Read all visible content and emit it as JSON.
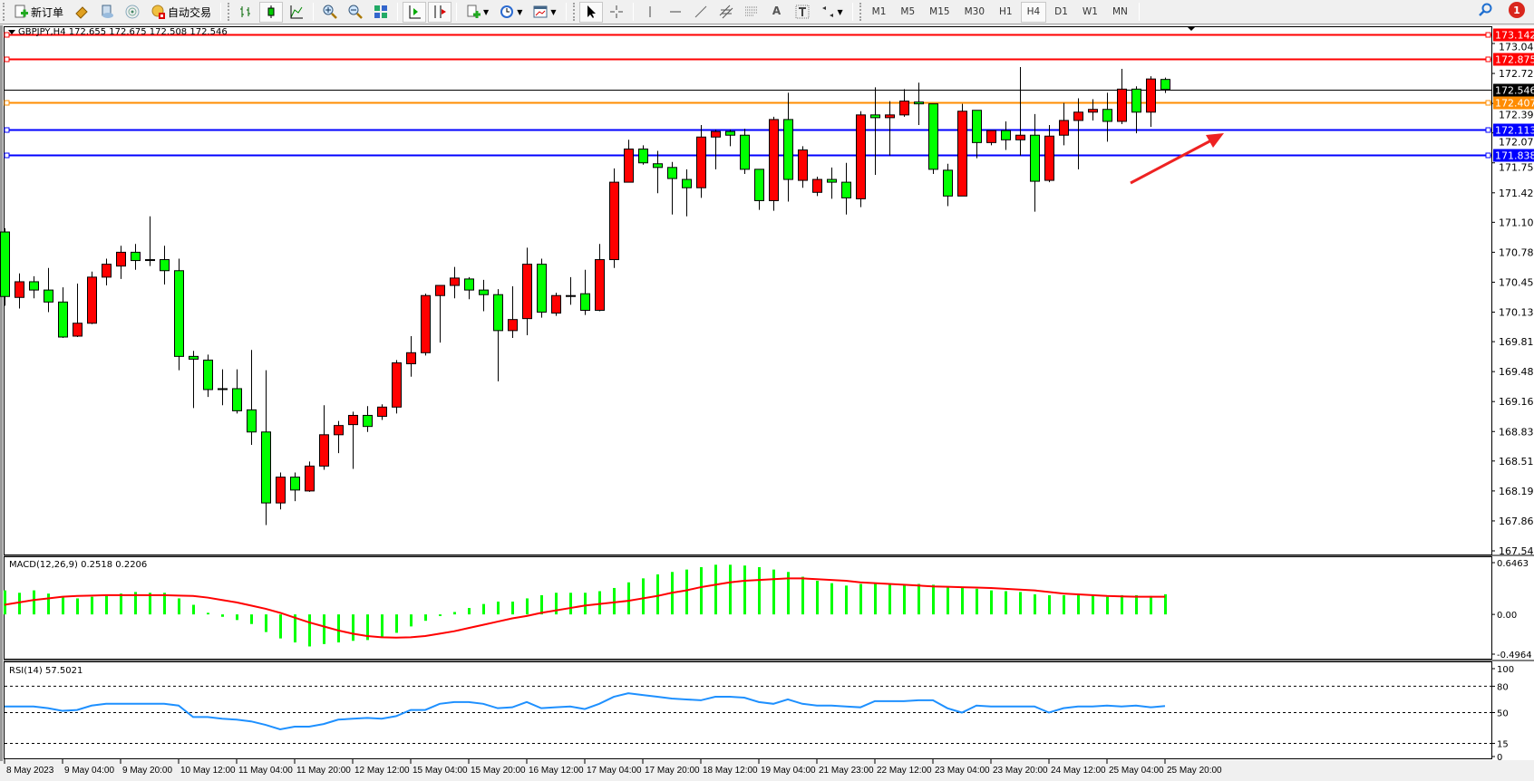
{
  "toolbar": {
    "new_order_label": "新订单",
    "auto_trading_label": "自动交易",
    "timeframes": [
      "M1",
      "M5",
      "M15",
      "M30",
      "H1",
      "H4",
      "D1",
      "W1",
      "MN"
    ],
    "active_timeframe": "H4",
    "notification_count": "1"
  },
  "chart": {
    "title": "GBPJPY,H4  172.655 172.675 172.508 172.546",
    "bull_color": "#ff0000",
    "bear_color": "#00ff00",
    "price_ticks": [
      "173.045",
      "172.720",
      "172.395",
      "172.075",
      "171.750",
      "171.425",
      "171.105",
      "170.780",
      "170.455",
      "170.130",
      "169.810",
      "169.485",
      "169.160",
      "168.835",
      "168.515",
      "168.190",
      "167.865",
      "167.540"
    ],
    "levels": [
      {
        "price": 173.142,
        "label": "173.142",
        "color": "#ff0000"
      },
      {
        "price": 172.875,
        "label": "172.875",
        "color": "#ff0000"
      },
      {
        "price": 172.407,
        "label": "172.407",
        "color": "#ff8c00"
      },
      {
        "price": 172.113,
        "label": "172.113",
        "color": "#0000ff"
      },
      {
        "price": 171.838,
        "label": "171.838",
        "color": "#0000ff"
      }
    ],
    "bid": {
      "price": 172.546,
      "label": "172.546",
      "color": "#000000"
    },
    "annotation_arrow_color": "#ee2222",
    "time_labels": [
      "8 May 2023",
      "9 May 04:00",
      "9 May 20:00",
      "10 May 12:00",
      "11 May 04:00",
      "11 May 20:00",
      "12 May 12:00",
      "15 May 04:00",
      "15 May 20:00",
      "16 May 12:00",
      "17 May 04:00",
      "17 May 20:00",
      "18 May 12:00",
      "19 May 04:00",
      "21 May 23:00",
      "22 May 12:00",
      "23 May 04:00",
      "23 May 20:00",
      "24 May 12:00",
      "25 May 04:00",
      "25 May 20:00"
    ]
  },
  "macd": {
    "label": "MACD(12,26,9) 0.2518 0.2206",
    "ticks": [
      "0.6463",
      "0.00",
      "-0.4964"
    ]
  },
  "rsi": {
    "label": "RSI(14) 57.5021",
    "ticks": [
      "100",
      "80",
      "50",
      "15",
      "0"
    ],
    "levels": [
      80,
      50,
      15
    ]
  },
  "chart_data": {
    "type": "candlestick",
    "ylim": [
      167.54,
      173.045
    ],
    "ohlc": [
      [
        171.0,
        171.04,
        170.2,
        170.3
      ],
      [
        170.29,
        170.55,
        170.17,
        170.46
      ],
      [
        170.46,
        170.52,
        170.28,
        170.37
      ],
      [
        170.37,
        170.61,
        170.13,
        170.24
      ],
      [
        170.24,
        170.4,
        169.85,
        169.86
      ],
      [
        169.87,
        170.44,
        169.86,
        170.01
      ],
      [
        170.01,
        170.57,
        170.0,
        170.51
      ],
      [
        170.51,
        170.71,
        170.42,
        170.65
      ],
      [
        170.63,
        170.85,
        170.49,
        170.78
      ],
      [
        170.78,
        170.87,
        170.59,
        170.69
      ],
      [
        170.7,
        171.17,
        170.63,
        170.7
      ],
      [
        170.7,
        170.85,
        170.43,
        170.58
      ],
      [
        170.58,
        170.71,
        169.5,
        169.65
      ],
      [
        169.65,
        169.71,
        169.09,
        169.62
      ],
      [
        169.61,
        169.67,
        169.21,
        169.29
      ],
      [
        169.3,
        169.51,
        169.12,
        169.29
      ],
      [
        169.3,
        169.51,
        169.03,
        169.06
      ],
      [
        169.07,
        169.72,
        168.69,
        168.83
      ],
      [
        168.83,
        169.5,
        167.82,
        168.06
      ],
      [
        168.06,
        168.39,
        167.99,
        168.34
      ],
      [
        168.34,
        168.39,
        168.08,
        168.2
      ],
      [
        168.19,
        168.51,
        168.18,
        168.46
      ],
      [
        168.46,
        169.12,
        168.42,
        168.8
      ],
      [
        168.8,
        168.95,
        168.6,
        168.9
      ],
      [
        168.91,
        169.05,
        168.43,
        169.01
      ],
      [
        169.01,
        169.11,
        168.83,
        168.89
      ],
      [
        169.0,
        169.13,
        168.96,
        169.1
      ],
      [
        169.1,
        169.61,
        169.03,
        169.58
      ],
      [
        169.57,
        169.87,
        169.43,
        169.69
      ],
      [
        169.69,
        170.33,
        169.66,
        170.31
      ],
      [
        170.31,
        170.42,
        169.8,
        170.42
      ],
      [
        170.42,
        170.62,
        170.28,
        170.5
      ],
      [
        170.49,
        170.51,
        170.27,
        170.37
      ],
      [
        170.37,
        170.48,
        170.14,
        170.32
      ],
      [
        170.32,
        170.38,
        169.38,
        169.93
      ],
      [
        169.93,
        170.41,
        169.85,
        170.05
      ],
      [
        170.06,
        170.83,
        169.88,
        170.65
      ],
      [
        170.65,
        170.71,
        170.07,
        170.13
      ],
      [
        170.12,
        170.34,
        170.09,
        170.31
      ],
      [
        170.31,
        170.51,
        170.21,
        170.31
      ],
      [
        170.33,
        170.59,
        170.1,
        170.15
      ],
      [
        170.15,
        170.87,
        170.14,
        170.7
      ],
      [
        170.7,
        171.69,
        170.61,
        171.54
      ],
      [
        171.54,
        172.0,
        171.54,
        171.9
      ],
      [
        171.9,
        171.94,
        171.73,
        171.75
      ],
      [
        171.74,
        171.88,
        171.42,
        171.7
      ],
      [
        171.7,
        171.76,
        171.19,
        171.58
      ],
      [
        171.57,
        171.68,
        171.17,
        171.48
      ],
      [
        171.48,
        172.16,
        171.37,
        172.03
      ],
      [
        172.03,
        172.11,
        171.68,
        172.09
      ],
      [
        172.09,
        172.11,
        171.93,
        172.05
      ],
      [
        172.05,
        172.12,
        171.63,
        171.68
      ],
      [
        171.68,
        171.68,
        171.24,
        171.34
      ],
      [
        171.34,
        172.25,
        171.23,
        172.22
      ],
      [
        172.22,
        172.51,
        171.33,
        171.57
      ],
      [
        171.56,
        171.93,
        171.48,
        171.89
      ],
      [
        171.43,
        171.6,
        171.39,
        171.57
      ],
      [
        171.57,
        171.7,
        171.36,
        171.54
      ],
      [
        171.54,
        171.75,
        171.19,
        171.37
      ],
      [
        171.36,
        172.31,
        171.27,
        172.27
      ],
      [
        172.27,
        172.57,
        171.62,
        172.24
      ],
      [
        172.24,
        172.42,
        171.83,
        172.27
      ],
      [
        172.27,
        172.55,
        172.25,
        172.42
      ],
      [
        172.41,
        172.62,
        172.16,
        172.39
      ],
      [
        172.39,
        172.39,
        171.63,
        171.68
      ],
      [
        171.67,
        171.74,
        171.28,
        171.39
      ],
      [
        171.39,
        172.39,
        171.39,
        172.31
      ],
      [
        172.32,
        172.32,
        171.8,
        171.97
      ],
      [
        171.97,
        172.1,
        171.94,
        172.1
      ],
      [
        172.1,
        172.2,
        171.89,
        172.0
      ],
      [
        172.0,
        172.79,
        171.83,
        172.05
      ],
      [
        172.05,
        172.28,
        171.22,
        171.55
      ],
      [
        171.56,
        172.16,
        171.54,
        172.04
      ],
      [
        172.05,
        172.4,
        171.94,
        172.21
      ],
      [
        172.21,
        172.45,
        171.68,
        172.3
      ],
      [
        172.3,
        172.44,
        172.21,
        172.33
      ],
      [
        172.33,
        172.51,
        171.98,
        172.2
      ],
      [
        172.2,
        172.77,
        172.17,
        172.55
      ],
      [
        172.55,
        172.58,
        172.07,
        172.3
      ],
      [
        172.3,
        172.69,
        172.14,
        172.66
      ],
      [
        172.655,
        172.675,
        172.508,
        172.546
      ]
    ],
    "macd_ylim": [
      -0.4964,
      0.6463
    ],
    "macd_hist": [
      0.3,
      0.27,
      0.3,
      0.26,
      0.21,
      0.2,
      0.22,
      0.23,
      0.26,
      0.28,
      0.27,
      0.27,
      0.2,
      0.12,
      0.02,
      -0.03,
      -0.07,
      -0.12,
      -0.22,
      -0.3,
      -0.35,
      -0.4,
      -0.37,
      -0.35,
      -0.33,
      -0.32,
      -0.28,
      -0.23,
      -0.15,
      -0.08,
      -0.02,
      0.03,
      0.08,
      0.13,
      0.16,
      0.16,
      0.2,
      0.24,
      0.27,
      0.27,
      0.27,
      0.29,
      0.33,
      0.4,
      0.45,
      0.5,
      0.53,
      0.56,
      0.59,
      0.62,
      0.62,
      0.61,
      0.59,
      0.56,
      0.53,
      0.47,
      0.42,
      0.39,
      0.36,
      0.38,
      0.38,
      0.38,
      0.38,
      0.38,
      0.37,
      0.34,
      0.33,
      0.32,
      0.3,
      0.29,
      0.28,
      0.25,
      0.24,
      0.24,
      0.24,
      0.24,
      0.22,
      0.24,
      0.24,
      0.23,
      0.2518
    ],
    "macd_signal": [
      0.12,
      0.15,
      0.18,
      0.2,
      0.22,
      0.23,
      0.235,
      0.24,
      0.24,
      0.24,
      0.24,
      0.24,
      0.235,
      0.23,
      0.21,
      0.18,
      0.15,
      0.11,
      0.07,
      0.02,
      -0.04,
      -0.1,
      -0.15,
      -0.2,
      -0.24,
      -0.27,
      -0.285,
      -0.29,
      -0.285,
      -0.27,
      -0.24,
      -0.21,
      -0.17,
      -0.13,
      -0.09,
      -0.05,
      -0.02,
      0.02,
      0.05,
      0.08,
      0.11,
      0.13,
      0.15,
      0.17,
      0.2,
      0.23,
      0.27,
      0.3,
      0.34,
      0.37,
      0.4,
      0.42,
      0.43,
      0.44,
      0.45,
      0.45,
      0.44,
      0.43,
      0.42,
      0.4,
      0.39,
      0.38,
      0.37,
      0.36,
      0.35,
      0.345,
      0.34,
      0.335,
      0.33,
      0.32,
      0.31,
      0.3,
      0.28,
      0.26,
      0.25,
      0.24,
      0.23,
      0.225,
      0.22,
      0.22,
      0.2206
    ],
    "rsi": [
      57,
      57,
      57,
      55,
      52,
      53,
      58,
      60,
      60,
      60,
      60,
      60,
      58,
      45,
      45,
      43,
      42,
      40,
      36,
      31,
      34,
      34,
      37,
      42,
      43,
      44,
      43,
      46,
      53,
      53,
      60,
      62,
      62,
      60,
      55,
      56,
      62,
      55,
      56,
      57,
      54,
      60,
      68,
      72,
      70,
      68,
      66,
      65,
      64,
      68,
      68,
      67,
      62,
      60,
      65,
      60,
      58,
      58,
      57,
      56,
      63,
      63,
      63,
      64,
      64,
      55,
      50,
      58,
      57,
      57,
      57,
      57,
      50,
      55,
      57,
      57,
      58,
      57,
      58,
      56,
      57.5021
    ]
  }
}
